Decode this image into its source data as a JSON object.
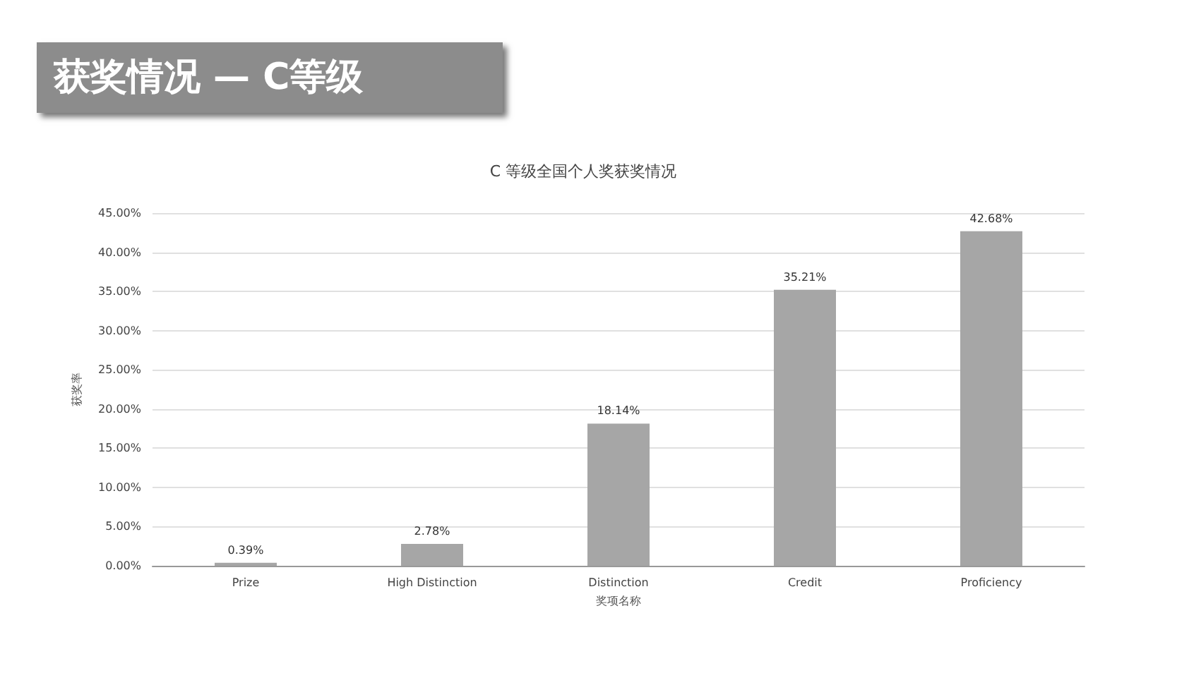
{
  "chart_data": {
    "type": "bar",
    "title": "获奖情况 — C等级",
    "subtitle": "C 等级全国个人奖获奖情况",
    "xlabel": "奖项名称",
    "ylabel": "获奖率",
    "categories": [
      "Prize",
      "High Distinction",
      "Distinction",
      "Credit",
      "Proficiency"
    ],
    "values": [
      0.39,
      2.78,
      18.14,
      35.21,
      42.68
    ],
    "color": "#a6a6a6",
    "value_labels": [
      "0.39%",
      "2.78%",
      "18.14%",
      "35.21%",
      "42.68%"
    ],
    "ylim": [
      0,
      45
    ],
    "yticks": [
      {
        "value": 0,
        "label": "0.00%"
      },
      {
        "value": 5,
        "label": "5.00%"
      },
      {
        "value": 10,
        "label": "10.00%"
      },
      {
        "value": 15,
        "label": "15.00%"
      },
      {
        "value": 20,
        "label": "20.00%"
      },
      {
        "value": 25,
        "label": "25.00%"
      },
      {
        "value": 30,
        "label": "30.00%"
      },
      {
        "value": 35,
        "label": "35.00%"
      },
      {
        "value": 40,
        "label": "40.00%"
      },
      {
        "value": 45,
        "label": "45.00%"
      }
    ],
    "grid": "y"
  }
}
